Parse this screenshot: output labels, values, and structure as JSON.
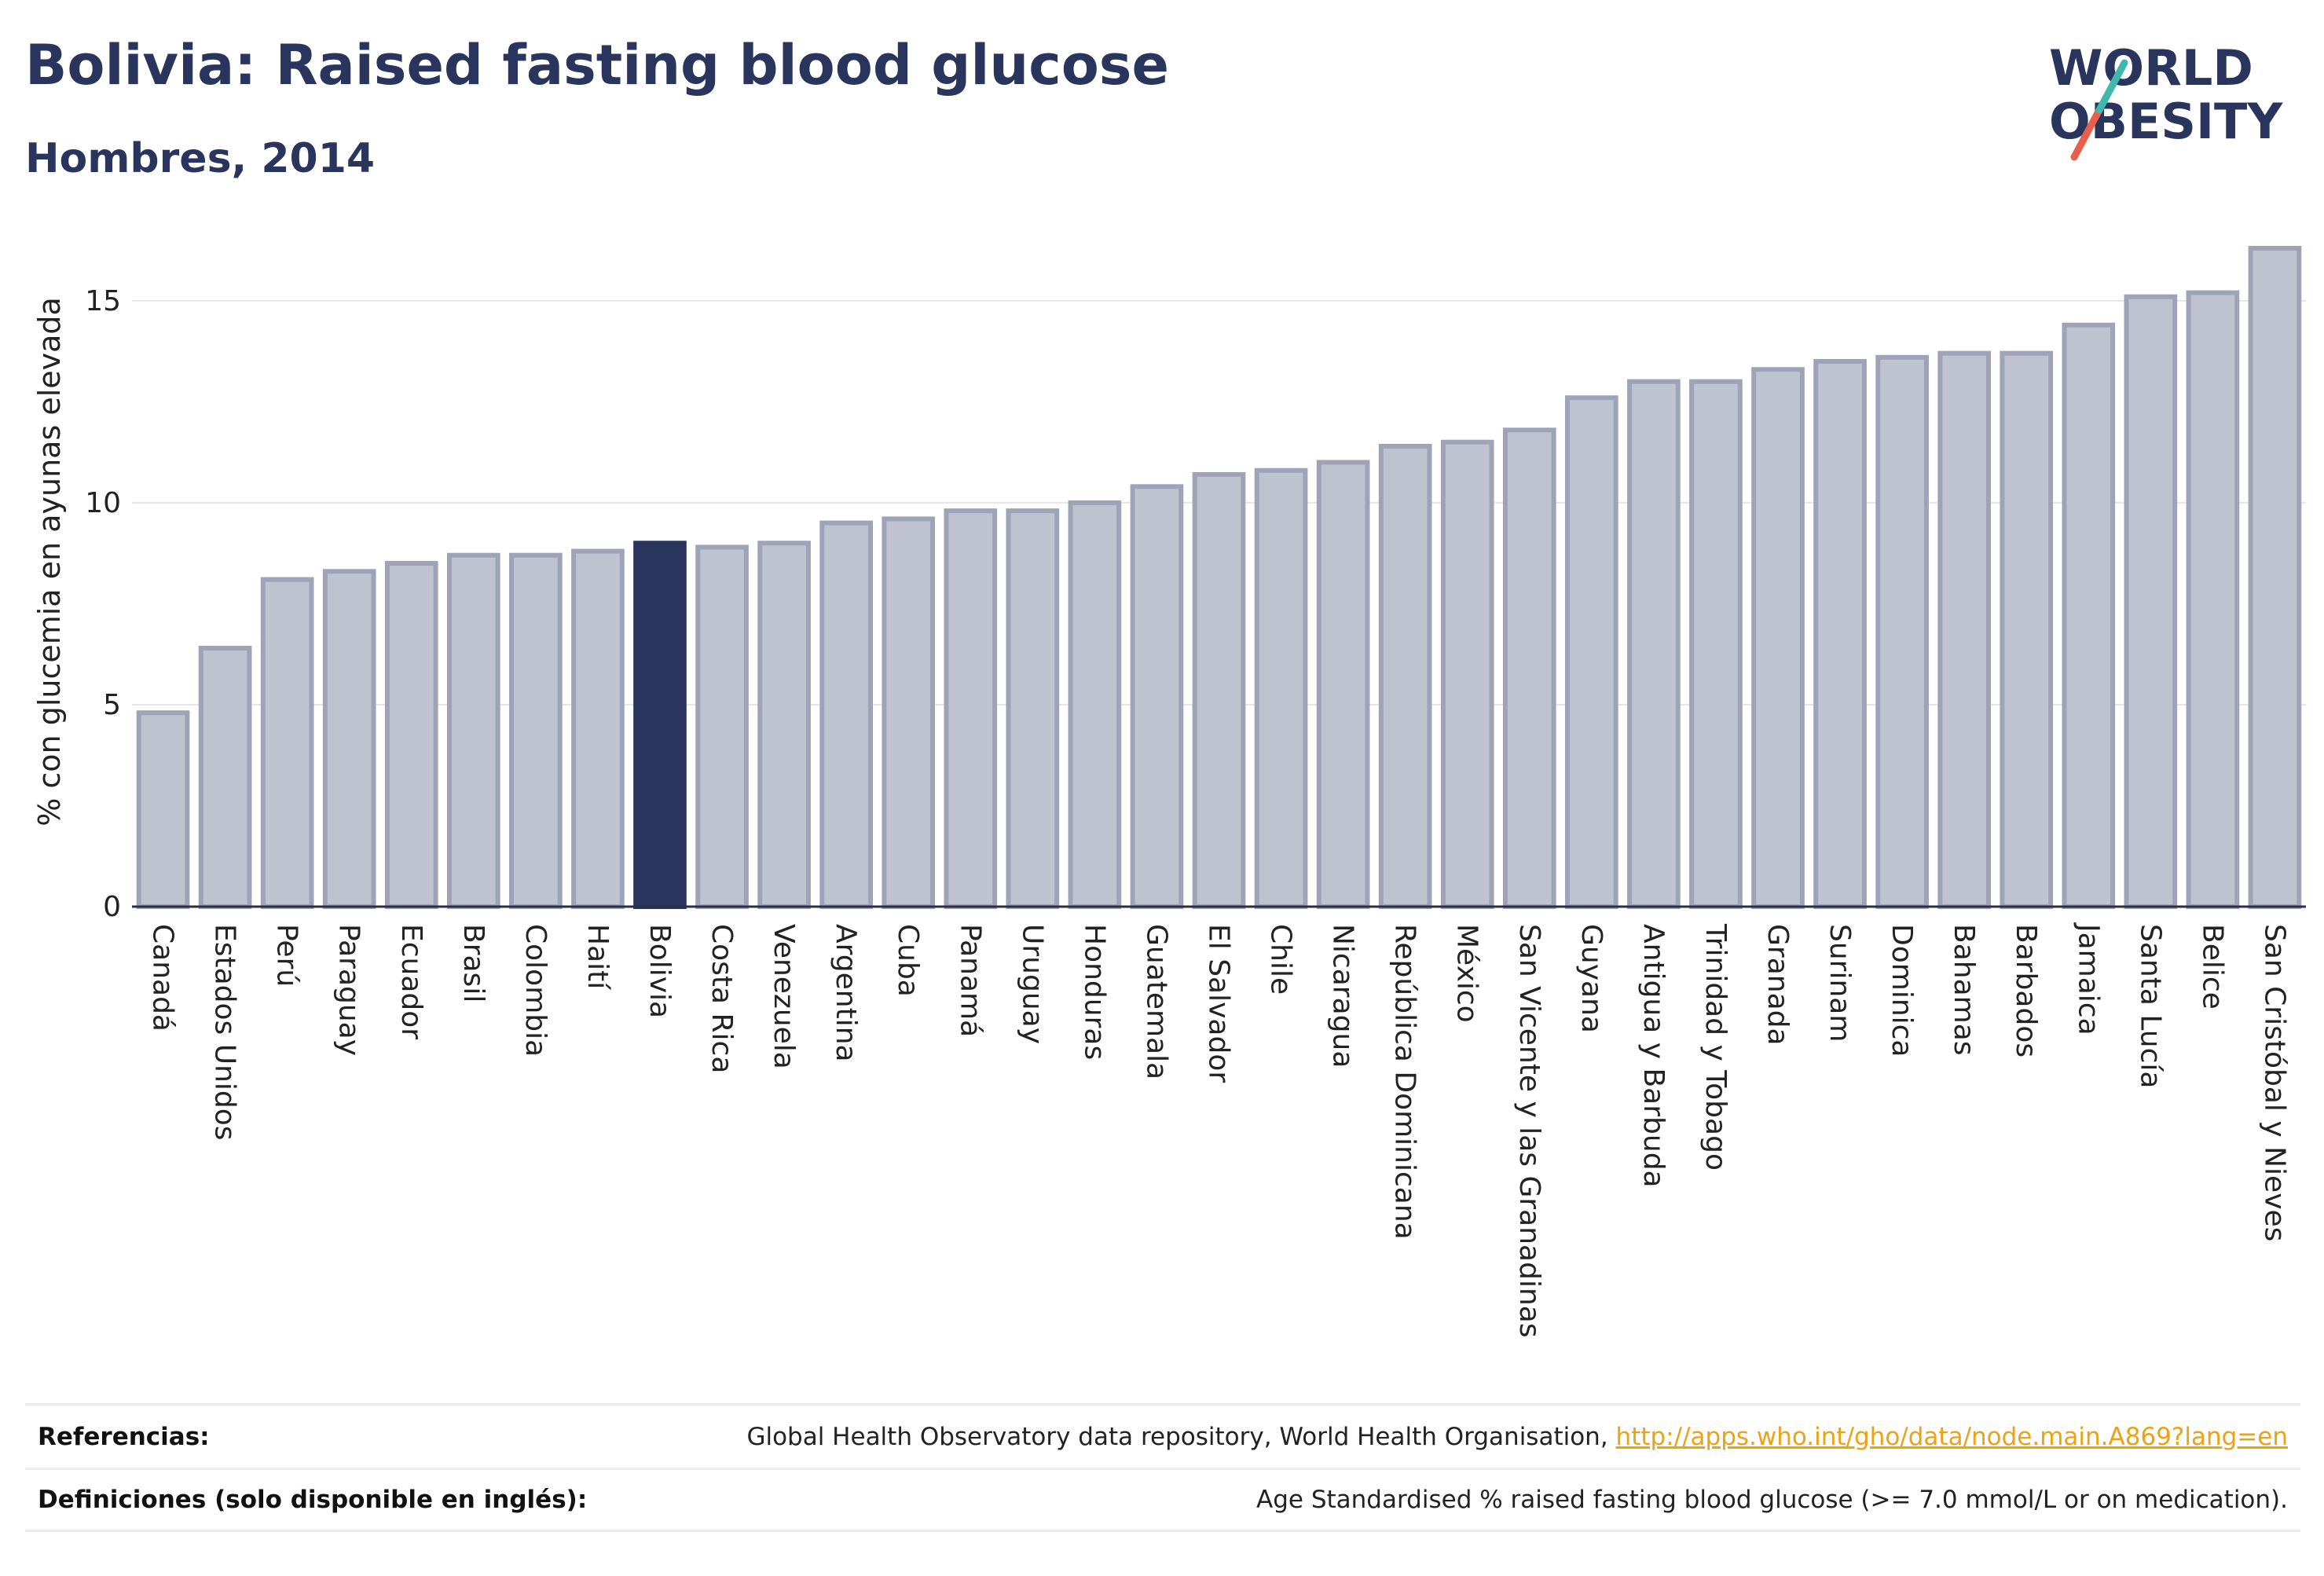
{
  "header": {
    "title": "Bolivia: Raised fasting blood glucose",
    "subtitle": "Hombres, 2014"
  },
  "logo": {
    "line1": "WORLD",
    "line2": "OBESITY"
  },
  "colors": {
    "highlight": "#2a355d",
    "bar": "#bfc2cf",
    "bar_stroke": "#9ea3b8",
    "title": "#2a355d",
    "link": "#e8a317"
  },
  "chart_data": {
    "type": "bar",
    "ylabel": "% con glucemia en ayunas elevada",
    "ylim": [
      0,
      16.3
    ],
    "yticks": [
      0,
      5,
      10,
      15
    ],
    "highlight": "Bolivia",
    "categories": [
      "Canadá",
      "Estados Unidos",
      "Perú",
      "Paraguay",
      "Ecuador",
      "Brasil",
      "Colombia",
      "Haití",
      "Bolivia",
      "Costa Rica",
      "Venezuela",
      "Argentina",
      "Cuba",
      "Panamá",
      "Uruguay",
      "Honduras",
      "Guatemala",
      "El Salvador",
      "Chile",
      "Nicaragua",
      "República Dominicana",
      "México",
      "San Vicente y las Granadinas",
      "Guyana",
      "Antigua y Barbuda",
      "Trinidad y Tobago",
      "Granada",
      "Surinam",
      "Dominica",
      "Bahamas",
      "Barbados",
      "Jamaica",
      "Santa Lucía",
      "Belice",
      "San Cristóbal y Nieves"
    ],
    "values": [
      4.8,
      6.4,
      8.1,
      8.3,
      8.5,
      8.7,
      8.7,
      8.8,
      9.0,
      8.9,
      9.0,
      9.5,
      9.6,
      9.8,
      9.8,
      10.0,
      10.4,
      10.7,
      10.8,
      11.0,
      11.4,
      11.5,
      11.8,
      12.6,
      13.0,
      13.0,
      13.3,
      13.5,
      13.6,
      13.7,
      13.7,
      14.4,
      15.1,
      15.2,
      16.3
    ]
  },
  "footer": {
    "ref_label": "Referencias:",
    "ref_text": "Global Health Observatory data repository, World Health Organisation,",
    "ref_link": "http://apps.who.int/gho/data/node.main.A869?lang=en",
    "def_label": "Definiciones (solo disponible en inglés):",
    "def_text": "Age Standardised % raised fasting blood glucose (>= 7.0 mmol/L or on medication)."
  }
}
